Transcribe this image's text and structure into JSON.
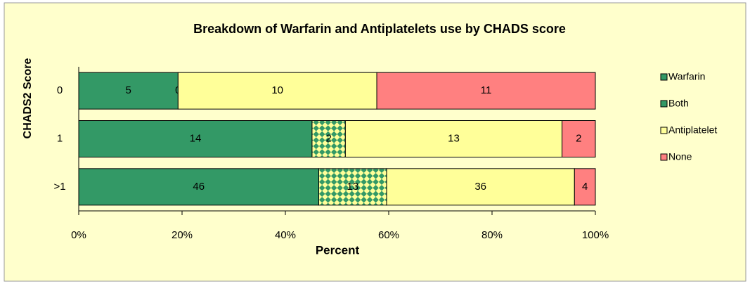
{
  "chart_data": {
    "type": "bar",
    "orientation": "horizontal",
    "stacked": "percent",
    "title": "Breakdown of Warfarin and Antiplatelets  use by CHADS score",
    "x_label": "Percent",
    "y_label": "CHADS2 Score",
    "categories": [
      "0",
      "1",
      ">1"
    ],
    "series": [
      {
        "name": "Warfarin",
        "color": "#339966",
        "values": [
          5,
          14,
          46
        ]
      },
      {
        "name": "Both",
        "color": "#339966",
        "pattern": "checkerboard",
        "pattern_color": "#FFFF99",
        "values": [
          0,
          2,
          13
        ]
      },
      {
        "name": "Antiplatelet",
        "color": "#FFFF99",
        "values": [
          10,
          13,
          36
        ]
      },
      {
        "name": "None",
        "color": "#FF8080",
        "values": [
          11,
          2,
          4
        ]
      }
    ],
    "xlim": [
      0,
      100
    ],
    "xticks": [
      {
        "value": 0,
        "label": "0%"
      },
      {
        "value": 20,
        "label": "20%"
      },
      {
        "value": 40,
        "label": "40%"
      },
      {
        "value": 60,
        "label": "60%"
      },
      {
        "value": 80,
        "label": "80%"
      },
      {
        "value": 100,
        "label": "100%"
      }
    ],
    "legend": "right",
    "background": "#FFFFCC"
  }
}
